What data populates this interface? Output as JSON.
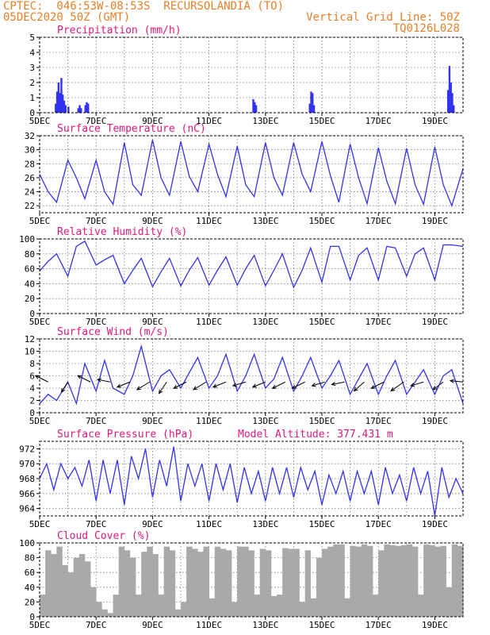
{
  "header": {
    "line1_left": "CPTEC:  046:53W-08:53S  RECURSOLANDIA (TO)",
    "line2_left": "05DEC2020 50Z (GMT)",
    "line2_right": "Vertical Grid Line: 50Z",
    "line3_right": "TQ0126L028"
  },
  "colors": {
    "header": "#e8802a",
    "title": "#e0197d",
    "line": "#3333ee",
    "bar": "#3333ee",
    "cloud": "#a9a9a9"
  },
  "chart_data": [
    {
      "id": "precip",
      "type": "bar",
      "title": "Precipitation (mm/h)",
      "xlabels": [
        "5DEC",
        "7DEC",
        "9DEC",
        "11DEC",
        "13DEC",
        "15DEC",
        "17DEC",
        "19DEC"
      ],
      "ylim": [
        0,
        5
      ],
      "yticks": [
        0,
        1,
        2,
        3,
        4,
        5
      ],
      "x_day": [
        0.57,
        0.62,
        0.67,
        0.72,
        0.77,
        0.82,
        0.87,
        0.92,
        1.02,
        1.37,
        1.42,
        1.47,
        1.62,
        1.67,
        1.72,
        7.57,
        7.62,
        7.67,
        9.57,
        9.62,
        9.67,
        9.72,
        14.47,
        14.52,
        14.57,
        14.62,
        14.67
      ],
      "values": [
        0.6,
        1.4,
        2.0,
        1.3,
        2.3,
        1.2,
        0.8,
        0.5,
        0.4,
        0.3,
        0.5,
        0.3,
        0.5,
        0.7,
        0.6,
        0.9,
        0.7,
        0.5,
        0.6,
        1.4,
        1.3,
        0.5,
        1.5,
        3.1,
        2.0,
        1.3,
        0.5
      ]
    },
    {
      "id": "temp",
      "type": "line",
      "title": "Surface Temperature (nC)",
      "xlabels": [
        "5DEC",
        "7DEC",
        "9DEC",
        "11DEC",
        "13DEC",
        "15DEC",
        "17DEC",
        "19DEC"
      ],
      "ylim": [
        21,
        32
      ],
      "yticks": [
        22,
        24,
        26,
        28,
        30,
        32
      ],
      "x_day": [
        0,
        0.3,
        0.6,
        1.0,
        1.3,
        1.6,
        2.0,
        2.3,
        2.6,
        3.0,
        3.3,
        3.6,
        4.0,
        4.3,
        4.6,
        5.0,
        5.3,
        5.6,
        6.0,
        6.3,
        6.6,
        7.0,
        7.3,
        7.6,
        8.0,
        8.3,
        8.6,
        9.0,
        9.3,
        9.6,
        10.0,
        10.3,
        10.6,
        11.0,
        11.3,
        11.6,
        12.0,
        12.3,
        12.6,
        13.0,
        13.3,
        13.6,
        14.0,
        14.3,
        14.6,
        15.0
      ],
      "values": [
        26.5,
        24,
        22.5,
        28.5,
        26,
        23,
        28.5,
        24,
        22.2,
        31,
        25,
        23.5,
        31.4,
        26,
        23.5,
        31.2,
        26.2,
        24,
        30.8,
        26.5,
        23.3,
        30.5,
        25,
        23.3,
        31,
        26,
        23.5,
        31,
        26.5,
        24,
        31.2,
        26.3,
        22.5,
        30.8,
        26,
        22.3,
        30.3,
        25.5,
        22.3,
        30.2,
        25,
        22.2,
        30.4,
        25,
        22,
        27.3
      ]
    },
    {
      "id": "rh",
      "type": "line",
      "title": "Relative Humidity (%)",
      "xlabels": [
        "5DEC",
        "7DEC",
        "9DEC",
        "11DEC",
        "13DEC",
        "15DEC",
        "17DEC",
        "19DEC"
      ],
      "ylim": [
        0,
        100
      ],
      "yticks": [
        0,
        20,
        40,
        60,
        80,
        100
      ],
      "x_day": [
        0,
        0.3,
        0.6,
        1.0,
        1.3,
        1.6,
        2.0,
        2.3,
        2.6,
        3.0,
        3.3,
        3.6,
        4.0,
        4.3,
        4.6,
        5.0,
        5.3,
        5.6,
        6.0,
        6.3,
        6.6,
        7.0,
        7.3,
        7.6,
        8.0,
        8.3,
        8.6,
        9.0,
        9.3,
        9.6,
        10.0,
        10.3,
        10.6,
        11.0,
        11.3,
        11.6,
        12.0,
        12.3,
        12.6,
        13.0,
        13.3,
        13.6,
        14.0,
        14.3,
        14.6,
        15.0
      ],
      "values": [
        57,
        70,
        80,
        50,
        90,
        97,
        65,
        72,
        78,
        40,
        58,
        74,
        36,
        56,
        74,
        37,
        58,
        75,
        38,
        58,
        76,
        38,
        60,
        78,
        37,
        58,
        80,
        35,
        58,
        88,
        42,
        90,
        90,
        45,
        78,
        88,
        45,
        90,
        88,
        50,
        80,
        88,
        45,
        92,
        92,
        90
      ]
    },
    {
      "id": "wind",
      "type": "line",
      "title": "Surface Wind (m/s)",
      "xlabels": [
        "5DEC",
        "7DEC",
        "9DEC",
        "11DEC",
        "13DEC",
        "15DEC",
        "17DEC",
        "19DEC"
      ],
      "ylim": [
        0,
        12
      ],
      "yticks": [
        0,
        2,
        4,
        6,
        8,
        10,
        12
      ],
      "x_day": [
        0,
        0.3,
        0.6,
        1.0,
        1.3,
        1.6,
        2.0,
        2.3,
        2.6,
        3.0,
        3.3,
        3.6,
        4.0,
        4.3,
        4.6,
        5.0,
        5.3,
        5.6,
        6.0,
        6.3,
        6.6,
        7.0,
        7.3,
        7.6,
        8.0,
        8.3,
        8.6,
        9.0,
        9.3,
        9.6,
        10.0,
        10.3,
        10.6,
        11.0,
        11.3,
        11.6,
        12.0,
        12.3,
        12.6,
        13.0,
        13.3,
        13.6,
        14.0,
        14.3,
        14.6,
        15.0
      ],
      "values": [
        1.5,
        3,
        2,
        5,
        1.5,
        8,
        3.5,
        8.5,
        4,
        3,
        6,
        10.8,
        3.5,
        6,
        7,
        4,
        6.5,
        9,
        4,
        6,
        9.5,
        3.5,
        6,
        9.5,
        4,
        5.5,
        9,
        3.5,
        6,
        9,
        4,
        6,
        8.5,
        3,
        5.5,
        8,
        3,
        6,
        8.5,
        3,
        5,
        7,
        3,
        6,
        7,
        1.5
      ],
      "arrows": [
        {
          "x_day": 0.3,
          "dx": -1,
          "dy": 0.5
        },
        {
          "x_day": 1.0,
          "dx": -0.5,
          "dy": -0.8
        },
        {
          "x_day": 1.8,
          "dx": -1,
          "dy": 0.5
        },
        {
          "x_day": 2.5,
          "dx": -1,
          "dy": 0.2
        },
        {
          "x_day": 3.2,
          "dx": -1,
          "dy": -0.4
        },
        {
          "x_day": 3.9,
          "dx": -1,
          "dy": -0.6
        },
        {
          "x_day": 4.5,
          "dx": -0.6,
          "dy": -0.9
        },
        {
          "x_day": 5.2,
          "dx": -1,
          "dy": -0.5
        },
        {
          "x_day": 5.9,
          "dx": -1,
          "dy": -0.6
        },
        {
          "x_day": 6.6,
          "dx": -1,
          "dy": -0.4
        },
        {
          "x_day": 7.3,
          "dx": -1,
          "dy": -0.3
        },
        {
          "x_day": 8.0,
          "dx": -1,
          "dy": -0.4
        },
        {
          "x_day": 8.7,
          "dx": -1,
          "dy": -0.5
        },
        {
          "x_day": 9.4,
          "dx": -1,
          "dy": -0.5
        },
        {
          "x_day": 10.1,
          "dx": -1,
          "dy": -0.3
        },
        {
          "x_day": 10.8,
          "dx": -1,
          "dy": -0.2
        },
        {
          "x_day": 11.5,
          "dx": -0.8,
          "dy": -0.7
        },
        {
          "x_day": 12.2,
          "dx": -1,
          "dy": -0.5
        },
        {
          "x_day": 12.9,
          "dx": -1,
          "dy": -0.7
        },
        {
          "x_day": 13.6,
          "dx": -1,
          "dy": -0.3
        },
        {
          "x_day": 14.3,
          "dx": -0.8,
          "dy": -0.6
        },
        {
          "x_day": 15.0,
          "dx": -1,
          "dy": 0.1
        }
      ]
    },
    {
      "id": "pres",
      "type": "line",
      "title": "Surface Pressure (hPa)",
      "annotation": "Model Altitude: 377.431 m",
      "xlabels": [
        "5DEC",
        "7DEC",
        "9DEC",
        "11DEC",
        "13DEC",
        "15DEC",
        "17DEC",
        "19DEC"
      ],
      "ylim": [
        963,
        973
      ],
      "yticks": [
        964,
        966,
        968,
        970,
        972
      ],
      "x_day": [
        0,
        0.25,
        0.5,
        0.75,
        1.0,
        1.25,
        1.5,
        1.75,
        2.0,
        2.25,
        2.5,
        2.75,
        3.0,
        3.25,
        3.5,
        3.75,
        4.0,
        4.25,
        4.5,
        4.75,
        5.0,
        5.25,
        5.5,
        5.75,
        6.0,
        6.25,
        6.5,
        6.75,
        7.0,
        7.25,
        7.5,
        7.75,
        8.0,
        8.25,
        8.5,
        8.75,
        9.0,
        9.25,
        9.5,
        9.75,
        10.0,
        10.25,
        10.5,
        10.75,
        11.0,
        11.25,
        11.5,
        11.75,
        12.0,
        12.25,
        12.5,
        12.75,
        13.0,
        13.25,
        13.5,
        13.75,
        14.0,
        14.25,
        14.5,
        14.75,
        15.0
      ],
      "values": [
        968,
        970,
        966.5,
        970,
        968,
        969.5,
        967,
        970.5,
        965,
        970.5,
        966,
        970.5,
        964.5,
        971,
        968,
        972,
        965.5,
        970.5,
        967,
        972.3,
        965,
        970,
        967,
        970,
        965,
        970,
        966.5,
        970,
        964.8,
        969.5,
        966,
        969,
        965,
        969.5,
        966,
        969.5,
        965.5,
        969.5,
        966.5,
        969,
        964.5,
        968.5,
        966,
        969,
        965,
        969,
        966,
        969,
        964.5,
        969.5,
        966,
        968.5,
        965,
        969.5,
        966,
        969,
        963,
        969.5,
        965.5,
        968,
        966
      ]
    },
    {
      "id": "cloud",
      "type": "area",
      "title": "Cloud Cover (%)",
      "xlabels": [
        "5DEC",
        "7DEC",
        "9DEC",
        "11DEC",
        "13DEC",
        "15DEC",
        "17DEC",
        "19DEC"
      ],
      "ylim": [
        0,
        100
      ],
      "yticks": [
        0,
        20,
        40,
        60,
        80,
        100
      ],
      "x_day": [
        0,
        0.2,
        0.4,
        0.6,
        0.8,
        1.0,
        1.2,
        1.4,
        1.6,
        1.8,
        2.0,
        2.2,
        2.4,
        2.6,
        2.8,
        3.0,
        3.2,
        3.4,
        3.6,
        3.8,
        4.0,
        4.2,
        4.4,
        4.6,
        4.8,
        5.0,
        5.2,
        5.4,
        5.6,
        5.8,
        6.0,
        6.2,
        6.4,
        6.6,
        6.8,
        7.0,
        7.2,
        7.4,
        7.6,
        7.8,
        8.0,
        8.2,
        8.4,
        8.6,
        8.8,
        9.0,
        9.2,
        9.4,
        9.6,
        9.8,
        10.0,
        10.2,
        10.4,
        10.6,
        10.8,
        11.0,
        11.2,
        11.4,
        11.6,
        11.8,
        12.0,
        12.2,
        12.4,
        12.6,
        12.8,
        13.0,
        13.2,
        13.4,
        13.6,
        13.8,
        14.0,
        14.2,
        14.4,
        14.6,
        14.8,
        15.0
      ],
      "values": [
        30,
        90,
        85,
        95,
        70,
        60,
        80,
        85,
        75,
        40,
        20,
        10,
        5,
        30,
        95,
        90,
        80,
        30,
        88,
        95,
        85,
        30,
        95,
        90,
        10,
        20,
        95,
        92,
        88,
        95,
        25,
        95,
        92,
        90,
        20,
        95,
        95,
        90,
        30,
        92,
        90,
        28,
        30,
        93,
        92,
        92,
        20,
        90,
        25,
        80,
        92,
        95,
        98,
        98,
        25,
        96,
        95,
        98,
        96,
        30,
        90,
        98,
        97,
        96,
        97,
        98,
        95,
        30,
        98,
        97,
        95,
        96,
        40,
        98,
        96,
        97
      ]
    }
  ]
}
